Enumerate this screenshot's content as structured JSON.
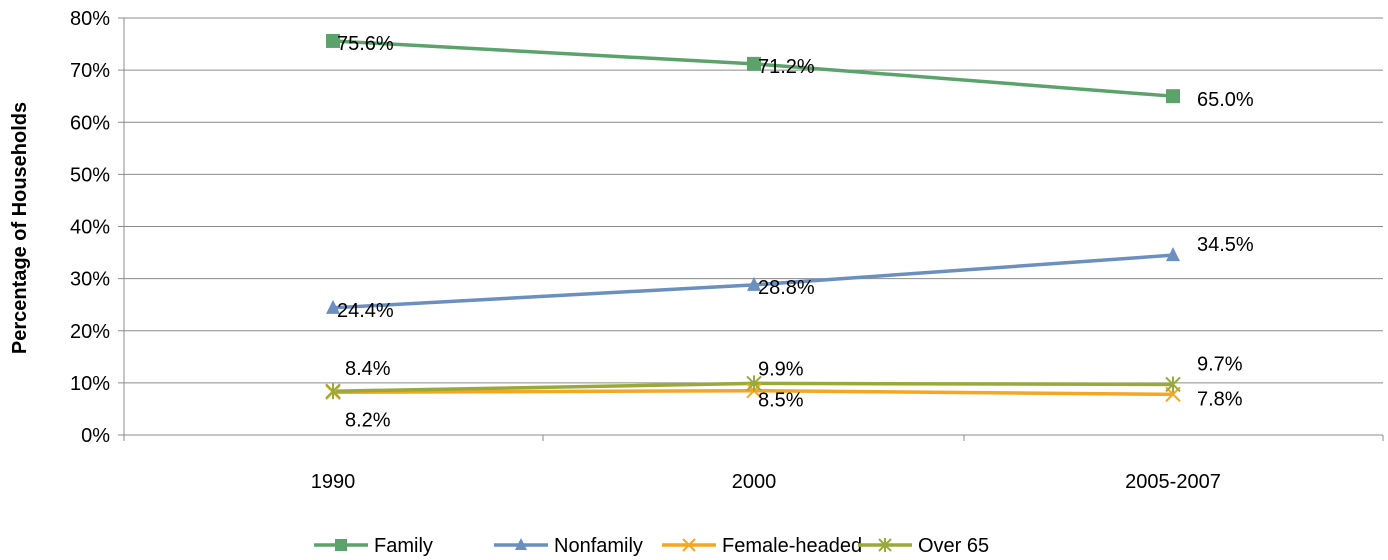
{
  "chart_data": {
    "type": "line",
    "title": "",
    "xlabel": "",
    "ylabel": "Percentage of Households",
    "categories": [
      "1990",
      "2000",
      "2005-2007"
    ],
    "ylim": [
      0,
      80
    ],
    "yticks": [
      "0%",
      "10%",
      "20%",
      "30%",
      "40%",
      "50%",
      "60%",
      "70%",
      "80%"
    ],
    "grid": true,
    "legend": "bottom",
    "series": [
      {
        "name": "Family",
        "values": [
          75.6,
          71.2,
          65.0
        ],
        "labels": [
          "75.6%",
          "71.2%",
          "65.0%"
        ],
        "color": "#5ba36b",
        "marker": "square"
      },
      {
        "name": "Nonfamily",
        "values": [
          24.4,
          28.8,
          34.5
        ],
        "labels": [
          "24.4%",
          "28.8%",
          "34.5%"
        ],
        "color": "#6b8fbf",
        "marker": "triangle"
      },
      {
        "name": "Female-headed",
        "values": [
          8.2,
          8.5,
          7.8
        ],
        "labels": [
          "8.2%",
          "8.5%",
          "7.8%"
        ],
        "color": "#f5a623",
        "marker": "x"
      },
      {
        "name": "Over 65",
        "values": [
          8.4,
          9.9,
          9.7
        ],
        "labels": [
          "8.4%",
          "9.9%",
          "9.7%"
        ],
        "color": "#9aaa3a",
        "marker": "star"
      }
    ]
  }
}
